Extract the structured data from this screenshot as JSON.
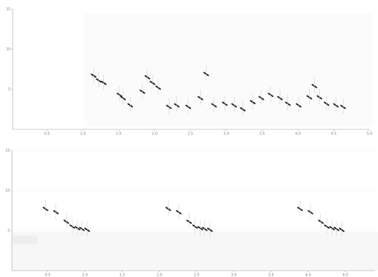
{
  "chart_data": [
    {
      "type": "scatter",
      "grid": false,
      "xlim": [
        0,
        5
      ],
      "ylim": [
        0,
        15
      ],
      "xticks": [
        0.5,
        {
          "value": 1,
          "label": "1.0"
        },
        1.5,
        {
          "value": 2,
          "label": "2.0"
        },
        2.5,
        {
          "value": 3,
          "label": "3.0"
        },
        3.5,
        {
          "value": 4,
          "label": "4.0"
        },
        4.5,
        {
          "value": 5,
          "label": "5.0"
        }
      ],
      "yticks": [
        5,
        10,
        15
      ],
      "series": [
        {
          "color": "#222222",
          "x": [
            1.15,
            1.22,
            1.29,
            1.51,
            1.56,
            1.66,
            1.83,
            1.9,
            1.97,
            2.05,
            2.2,
            2.31,
            2.47,
            2.64,
            2.72,
            2.83,
            2.98,
            3.11,
            3.23,
            3.37,
            3.49,
            3.62,
            3.75,
            3.86,
            4.01,
            4.16,
            4.23,
            4.3,
            4.4,
            4.53,
            4.63
          ],
          "values": [
            6.7,
            6.1,
            5.8,
            4.3,
            3.9,
            3.0,
            4.7,
            6.5,
            5.8,
            5.2,
            2.8,
            3.0,
            2.8,
            3.9,
            6.9,
            3.0,
            3.2,
            3.0,
            2.5,
            3.4,
            3.9,
            4.3,
            3.9,
            3.2,
            3.0,
            4.0,
            5.4,
            4.0,
            3.2,
            3.0,
            2.8
          ]
        }
      ]
    },
    {
      "type": "scatter",
      "grid": true,
      "xlim": [
        0,
        4.9
      ],
      "ylim": [
        0,
        15
      ],
      "xticks": [
        0.5,
        {
          "value": 1,
          "label": "1.0"
        },
        1.5,
        {
          "value": 2,
          "label": "2.0"
        },
        2.5,
        {
          "value": 3,
          "label": "3.0"
        },
        3.5,
        {
          "value": 4,
          "label": "4.0"
        },
        4.5
      ],
      "yticks": [
        5,
        10,
        15
      ],
      "series": [
        {
          "color": "#222222",
          "x": [
            0.47,
            0.61,
            0.75,
            0.83,
            0.9,
            0.96,
            1.03,
            2.12,
            2.26,
            2.4,
            2.48,
            2.55,
            2.61,
            2.68,
            3.89,
            4.03,
            4.17,
            4.25,
            4.32,
            4.38,
            4.45
          ],
          "values": [
            7.7,
            7.3,
            6.1,
            5.5,
            5.3,
            5.2,
            5.1,
            7.7,
            7.3,
            6.1,
            5.5,
            5.3,
            5.2,
            5.1,
            7.7,
            7.3,
            6.1,
            5.5,
            5.3,
            5.2,
            5.1
          ]
        }
      ]
    }
  ]
}
